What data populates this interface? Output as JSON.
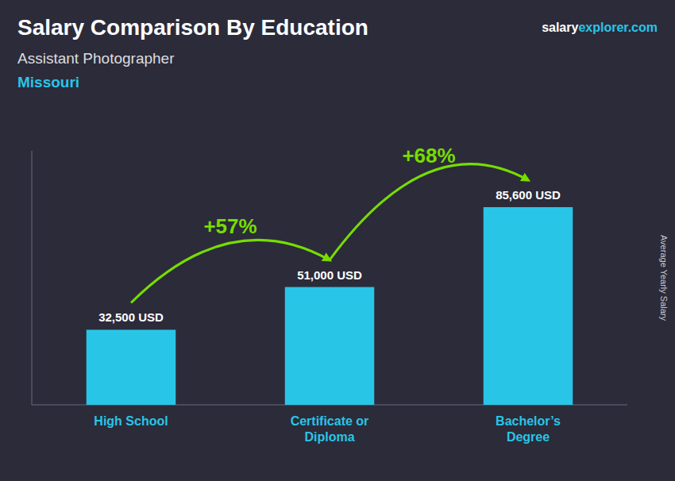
{
  "chart_data": {
    "type": "bar",
    "title": "Salary Comparison By Education",
    "subtitle": "Assistant Photographer",
    "location": "Missouri",
    "credit": [
      "salary",
      "explorer",
      ".com"
    ],
    "y_label": "Average Yearly Salary",
    "categories": [
      "High School",
      "Certificate or\nDiploma",
      "Bachelor’s\nDegree"
    ],
    "values": [
      32500,
      51000,
      85600
    ],
    "value_labels": [
      "32,500 USD",
      "51,000 USD",
      "85,600 USD"
    ],
    "data_labels": true,
    "color": "#29c5e6",
    "annotations": [
      {
        "text": "+57%",
        "color": "#77dd00"
      },
      {
        "text": "+68%",
        "color": "#77dd00"
      }
    ],
    "ylim": [
      0,
      110000
    ],
    "tick_labels": "x",
    "grid": false
  }
}
